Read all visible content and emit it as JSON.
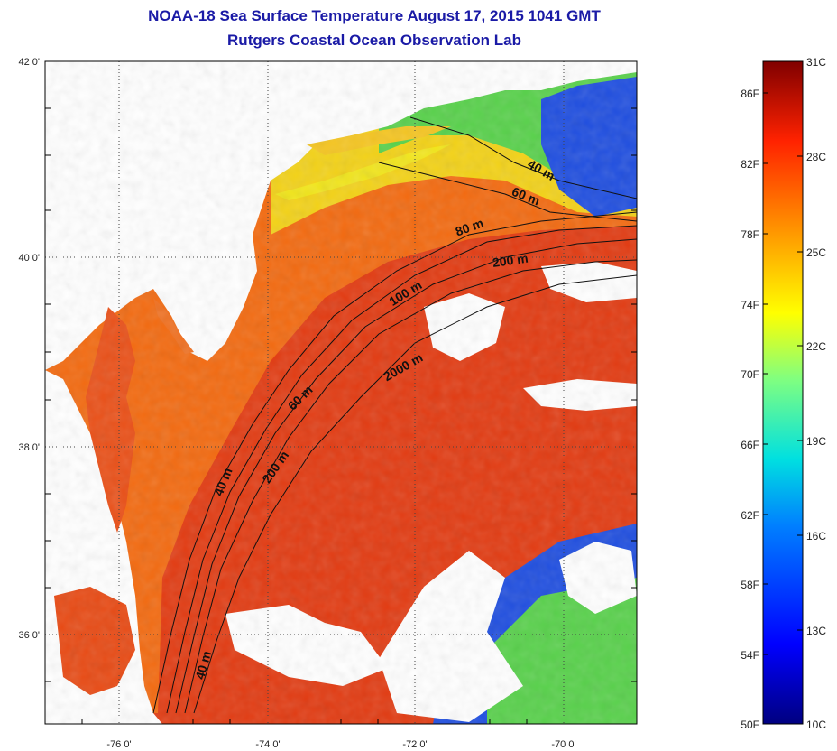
{
  "title_line1": "NOAA-18 Sea Surface Temperature August 17, 2015 1041 GMT",
  "title_line2": "Rutgers Coastal Ocean Observation Lab",
  "colors": {
    "warm": "#e23b12",
    "orange": "#f36a10",
    "yellow": "#f3d217",
    "green": "#58d14b",
    "cyan": "#23c7d8",
    "blue": "#1f4ee0",
    "land": "#ffffff",
    "title": "#1a1aa6"
  },
  "axes": {
    "lat_ticks": [
      "42 0'",
      "40 0'",
      "38 0'",
      "36 0'"
    ],
    "lon_ticks": [
      "-76 0'",
      "-74 0'",
      "-72 0'",
      "-70 0'"
    ]
  },
  "contours": [
    "40 m",
    "60 m",
    "80 m",
    "200 m",
    "100 m",
    "2000 m",
    "60 m",
    "200 m",
    "40 m",
    "40 m"
  ],
  "colorbar": {
    "celsius": [
      "31C",
      "28C",
      "25C",
      "22C",
      "19C",
      "16C",
      "13C",
      "10C"
    ],
    "fahrenheit": [
      "86F",
      "82F",
      "78F",
      "74F",
      "70F",
      "66F",
      "62F",
      "58F",
      "54F",
      "50F"
    ]
  }
}
